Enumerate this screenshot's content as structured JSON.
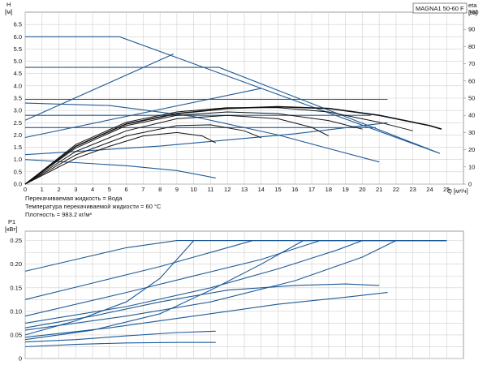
{
  "chart_data": [
    {
      "type": "line",
      "model": "MAGNA1 50-60 F",
      "ylabel": "H",
      "yunit": "[м]",
      "y2label": "eta",
      "y2unit": "[%]",
      "xlabel": "Q [м³/ч]",
      "xlim": [
        0,
        26
      ],
      "ylim": [
        0,
        7
      ],
      "y2lim": [
        0,
        100
      ],
      "grid": true,
      "x_ticks": [
        "0",
        "1",
        "2",
        "3",
        "4",
        "5",
        "6",
        "7",
        "8",
        "9",
        "10",
        "11",
        "12",
        "13",
        "14",
        "15",
        "16",
        "17",
        "18",
        "19",
        "20",
        "21",
        "22",
        "23",
        "24",
        "25"
      ],
      "y_ticks": [
        "0.0",
        "0.5",
        "1.0",
        "1.5",
        "2.0",
        "2.5",
        "3.0",
        "3.5",
        "4.0",
        "4.5",
        "5.0",
        "5.5",
        "6.0",
        "6.5"
      ],
      "y2_ticks": [
        "0",
        "10",
        "20",
        "30",
        "40",
        "50",
        "60",
        "70",
        "80",
        "90",
        "100"
      ],
      "notes": [
        "Перекачиваемая жидкость = Вода",
        "Температура перекачиваемой жидкости = 60 °C",
        "Плотность = 983.2 кг/м³"
      ],
      "head_series": [
        {
          "points": [
            [
              0,
              6.0
            ],
            [
              5.6,
              6.0
            ],
            [
              24.6,
              1.25
            ]
          ]
        },
        {
          "points": [
            [
              0,
              4.75
            ],
            [
              11.5,
              4.75
            ],
            [
              24.6,
              1.25
            ]
          ]
        },
        {
          "points": [
            [
              0,
              3.45
            ],
            [
              21.5,
              3.45
            ]
          ]
        },
        {
          "points": [
            [
              0,
              2.8
            ],
            [
              20.5,
              2.8
            ]
          ]
        },
        {
          "points": [
            [
              0,
              2.3
            ],
            [
              20.8,
              2.3
            ]
          ]
        },
        {
          "points": [
            [
              0,
              3.3
            ],
            [
              5,
              3.2
            ],
            [
              10,
              2.75
            ],
            [
              15,
              2.0
            ],
            [
              18,
              1.45
            ],
            [
              21,
              0.9
            ]
          ]
        },
        {
          "points": [
            [
              0,
              2.6
            ],
            [
              8.8,
              5.3
            ]
          ]
        },
        {
          "points": [
            [
              0,
              1.9
            ],
            [
              14,
              3.9
            ]
          ]
        },
        {
          "points": [
            [
              0,
              1.2
            ],
            [
              8,
              1.55
            ],
            [
              16,
              2.05
            ],
            [
              21.5,
              2.5
            ]
          ]
        },
        {
          "points": [
            [
              0,
              1.0
            ],
            [
              6,
              0.75
            ],
            [
              9,
              0.55
            ],
            [
              11.3,
              0.25
            ]
          ]
        }
      ],
      "efficiency_series": [
        {
          "points": [
            [
              0,
              0
            ],
            [
              3,
              22
            ],
            [
              6,
              35
            ],
            [
              9,
              41
            ],
            [
              12,
              44
            ],
            [
              15,
              45
            ],
            [
              18,
              44
            ],
            [
              21,
              40
            ],
            [
              24,
              34
            ],
            [
              24.7,
              32
            ]
          ]
        },
        {
          "points": [
            [
              0,
              0
            ],
            [
              3,
              23
            ],
            [
              6,
              36
            ],
            [
              9,
              42
            ],
            [
              12,
              44.5
            ],
            [
              15,
              44.5
            ],
            [
              18,
              42
            ],
            [
              21,
              36
            ],
            [
              23,
              31
            ]
          ]
        },
        {
          "points": [
            [
              0,
              0
            ],
            [
              3,
              21
            ],
            [
              6,
              34
            ],
            [
              9,
              40
            ],
            [
              12,
              42
            ],
            [
              15,
              41
            ],
            [
              18,
              37
            ],
            [
              20,
              32
            ]
          ]
        },
        {
          "points": [
            [
              0,
              0
            ],
            [
              3,
              19
            ],
            [
              6,
              31
            ],
            [
              9,
              38
            ],
            [
              12,
              40
            ],
            [
              15,
              38
            ],
            [
              17,
              33
            ],
            [
              18,
              28
            ]
          ]
        },
        {
          "points": [
            [
              0,
              0
            ],
            [
              3,
              17
            ],
            [
              6,
              28
            ],
            [
              9,
              34
            ],
            [
              11,
              34.5
            ],
            [
              13,
              31
            ],
            [
              14,
              27
            ]
          ]
        },
        {
          "points": [
            [
              0,
              0
            ],
            [
              3,
              15
            ],
            [
              5,
              22
            ],
            [
              7,
              28
            ],
            [
              9,
              30
            ],
            [
              10.5,
              28
            ],
            [
              11.3,
              24
            ]
          ]
        }
      ]
    },
    {
      "type": "line",
      "ylabel": "P1",
      "yunit": "[кВт]",
      "xlim": [
        0,
        26
      ],
      "ylim": [
        0,
        0.27
      ],
      "grid": true,
      "y_ticks": [
        "0",
        "0.05",
        "0.10",
        "0.15",
        "0.20",
        "0.25"
      ],
      "series": [
        {
          "points": [
            [
              0,
              0.185
            ],
            [
              3,
              0.21
            ],
            [
              6,
              0.235
            ],
            [
              9,
              0.25
            ],
            [
              25,
              0.25
            ]
          ]
        },
        {
          "points": [
            [
              0,
              0.125
            ],
            [
              4,
              0.16
            ],
            [
              8,
              0.195
            ],
            [
              11,
              0.225
            ],
            [
              13.5,
              0.25
            ],
            [
              25,
              0.25
            ]
          ]
        },
        {
          "points": [
            [
              0,
              0.09
            ],
            [
              6,
              0.14
            ],
            [
              10,
              0.175
            ],
            [
              14,
              0.21
            ],
            [
              17.5,
              0.25
            ],
            [
              25,
              0.25
            ]
          ]
        },
        {
          "points": [
            [
              0,
              0.075
            ],
            [
              6,
              0.11
            ],
            [
              11,
              0.15
            ],
            [
              15,
              0.19
            ],
            [
              18.5,
              0.23
            ],
            [
              20,
              0.25
            ],
            [
              25,
              0.25
            ]
          ]
        },
        {
          "points": [
            [
              0,
              0.06
            ],
            [
              6,
              0.09
            ],
            [
              11,
              0.12
            ],
            [
              16,
              0.165
            ],
            [
              20,
              0.215
            ],
            [
              22,
              0.25
            ],
            [
              25,
              0.25
            ]
          ]
        },
        {
          "points": [
            [
              0,
              0.05
            ],
            [
              3,
              0.08
            ],
            [
              6,
              0.12
            ],
            [
              8,
              0.17
            ],
            [
              10,
              0.25
            ],
            [
              25,
              0.25
            ]
          ]
        },
        {
          "points": [
            [
              0,
              0.04
            ],
            [
              4,
              0.06
            ],
            [
              8,
              0.095
            ],
            [
              11,
              0.145
            ],
            [
              14,
              0.2
            ],
            [
              16.5,
              0.25
            ],
            [
              25,
              0.25
            ]
          ]
        },
        {
          "points": [
            [
              0,
              0.065
            ],
            [
              4,
              0.09
            ],
            [
              8,
              0.12
            ],
            [
              12,
              0.145
            ],
            [
              16,
              0.155
            ],
            [
              19,
              0.158
            ],
            [
              21,
              0.155
            ]
          ]
        },
        {
          "points": [
            [
              0,
              0.045
            ],
            [
              5,
              0.065
            ],
            [
              10,
              0.09
            ],
            [
              15,
              0.115
            ],
            [
              19,
              0.13
            ],
            [
              21.5,
              0.14
            ]
          ]
        },
        {
          "points": [
            [
              0,
              0.035
            ],
            [
              3,
              0.04
            ],
            [
              6,
              0.048
            ],
            [
              9,
              0.055
            ],
            [
              11.3,
              0.058
            ]
          ]
        },
        {
          "points": [
            [
              0,
              0.025
            ],
            [
              3,
              0.03
            ],
            [
              6,
              0.033
            ],
            [
              9,
              0.034
            ],
            [
              11.3,
              0.034
            ]
          ]
        }
      ]
    }
  ]
}
